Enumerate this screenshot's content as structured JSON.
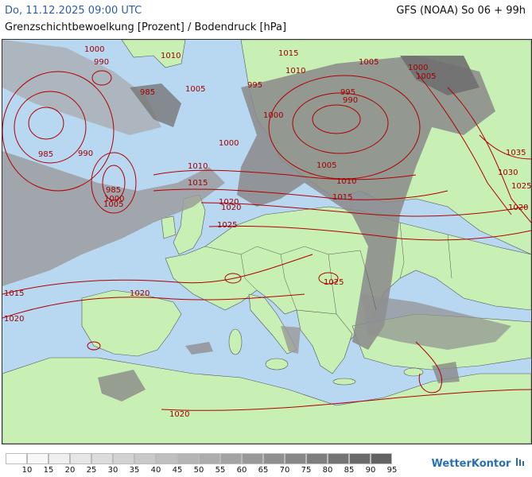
{
  "header": {
    "date": "Do, 11.12.2025 09:00 UTC",
    "model": "GFS (NOAA) So 06 + 99h",
    "subtitle": "Grenzschichtbewoelkung [Prozent] / Bodendruck [hPa]"
  },
  "isobars": [
    "1000",
    "990",
    "1010",
    "1015",
    "1005",
    "1005",
    "1000",
    "985",
    "995",
    "1010",
    "1005",
    "995",
    "985",
    "990",
    "1000",
    "985",
    "990",
    "1000",
    "1005",
    "1010",
    "1015",
    "1020",
    "1025",
    "1035",
    "1030",
    "1025",
    "1020",
    "1020",
    "1015",
    "1010",
    "1005",
    "1000",
    "1025",
    "1020",
    "1015",
    "1020",
    "1020"
  ],
  "legend": {
    "labels": [
      "10",
      "15",
      "20",
      "25",
      "30",
      "35",
      "40",
      "45",
      "50",
      "55",
      "60",
      "65",
      "70",
      "75",
      "80",
      "85",
      "90",
      "95"
    ],
    "colors": [
      "#ffffff",
      "#f7f7f7",
      "#efefef",
      "#e6e6e6",
      "#dcdcdc",
      "#d3d3d3",
      "#c9c9c9",
      "#bfbfbf",
      "#b5b5b5",
      "#acacac",
      "#a3a3a3",
      "#999999",
      "#909090",
      "#878787",
      "#7e7e7e",
      "#747474",
      "#6b6b6b",
      "#626262"
    ]
  },
  "brand": {
    "name": "WetterKontor"
  }
}
